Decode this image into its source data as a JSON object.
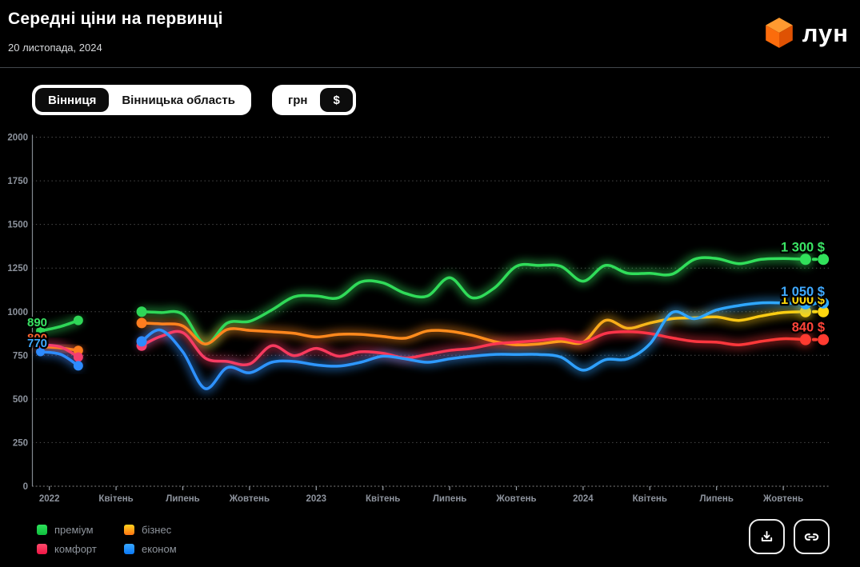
{
  "header": {
    "title": "Середні ціни на первинці",
    "date": "20 листопада, 2024",
    "logo_text": "лун",
    "logo_colors": {
      "top": "#ff9a30",
      "left": "#fb6c0c",
      "right": "#df5203"
    }
  },
  "toggles": {
    "city": [
      {
        "label": "Вінниця",
        "active": true
      },
      {
        "label": "Вінницька область",
        "active": false
      }
    ],
    "currency": [
      {
        "label": "грн",
        "active": false
      },
      {
        "label": "$",
        "active": true
      }
    ]
  },
  "chart_data": {
    "type": "line",
    "unit": "$",
    "ylim": [
      0,
      2000
    ],
    "y_ticks": [
      0,
      250,
      500,
      750,
      1000,
      1250,
      1500,
      1750,
      2000
    ],
    "x_unit": "months_since_2022_01",
    "x_ticks": [
      {
        "m": 0,
        "label": "2022"
      },
      {
        "m": 3,
        "label": "Квітень"
      },
      {
        "m": 6,
        "label": "Липень"
      },
      {
        "m": 9,
        "label": "Жовтень"
      },
      {
        "m": 12,
        "label": "2023"
      },
      {
        "m": 15,
        "label": "Квітень"
      },
      {
        "m": 18,
        "label": "Липень"
      },
      {
        "m": 21,
        "label": "Жовтень"
      },
      {
        "m": 24,
        "label": "2024"
      },
      {
        "m": 27,
        "label": "Квітень"
      },
      {
        "m": 30,
        "label": "Липень"
      },
      {
        "m": 33,
        "label": "Жовтень"
      }
    ],
    "gap_note": "no data between Feb 2022 and mid-May 2022",
    "series": [
      {
        "name": "преміум",
        "stops": [
          [
            0,
            "#2fd657"
          ],
          [
            1,
            "#31e05b"
          ]
        ],
        "label_color": "#3ae364",
        "start_label": "890",
        "end_label": "1 300 $",
        "pre": [
          [
            -0.4,
            890
          ],
          [
            0.5,
            915
          ],
          [
            1.3,
            950
          ]
        ],
        "main": [
          [
            4.15,
            1000
          ],
          [
            5,
            995
          ],
          [
            6,
            985
          ],
          [
            7,
            815
          ],
          [
            8,
            935
          ],
          [
            9,
            945
          ],
          [
            10,
            1010
          ],
          [
            11,
            1085
          ],
          [
            12,
            1090
          ],
          [
            13,
            1080
          ],
          [
            14,
            1170
          ],
          [
            15,
            1165
          ],
          [
            16,
            1105
          ],
          [
            17,
            1090
          ],
          [
            18,
            1195
          ],
          [
            19,
            1080
          ],
          [
            20,
            1135
          ],
          [
            21,
            1260
          ],
          [
            22,
            1265
          ],
          [
            23,
            1260
          ],
          [
            24,
            1175
          ],
          [
            25,
            1265
          ],
          [
            26,
            1220
          ],
          [
            27,
            1220
          ],
          [
            28,
            1215
          ],
          [
            29,
            1300
          ],
          [
            30,
            1305
          ],
          [
            31,
            1275
          ],
          [
            32,
            1300
          ],
          [
            33,
            1305
          ],
          [
            34,
            1300
          ]
        ],
        "projection": [
          34.8,
          1300
        ]
      },
      {
        "name": "бізнес",
        "stops": [
          [
            0,
            "#ff7d1f"
          ],
          [
            0.6,
            "#ff8f1c"
          ],
          [
            0.78,
            "#f5b81a"
          ],
          [
            1,
            "#ffd60f"
          ]
        ],
        "label_color": "#ffd60a",
        "start_label_color": "#ff6430",
        "start_label": "800",
        "end_label": "1 000 $",
        "pre": [
          [
            -0.4,
            800
          ],
          [
            0.5,
            792
          ],
          [
            1.3,
            778
          ]
        ],
        "main": [
          [
            4.15,
            935
          ],
          [
            5,
            930
          ],
          [
            6,
            918
          ],
          [
            7,
            815
          ],
          [
            8,
            898
          ],
          [
            9,
            893
          ],
          [
            10,
            885
          ],
          [
            11,
            876
          ],
          [
            12,
            855
          ],
          [
            13,
            870
          ],
          [
            14,
            870
          ],
          [
            15,
            858
          ],
          [
            16,
            848
          ],
          [
            17,
            890
          ],
          [
            18,
            888
          ],
          [
            19,
            865
          ],
          [
            20,
            830
          ],
          [
            21,
            810
          ],
          [
            22,
            815
          ],
          [
            23,
            830
          ],
          [
            24,
            825
          ],
          [
            25,
            950
          ],
          [
            26,
            905
          ],
          [
            27,
            935
          ],
          [
            28,
            960
          ],
          [
            29,
            965
          ],
          [
            30,
            970
          ],
          [
            31,
            950
          ],
          [
            32,
            975
          ],
          [
            33,
            995
          ],
          [
            34,
            1000
          ]
        ],
        "projection": [
          34.8,
          1000
        ]
      },
      {
        "name": "комфорт",
        "stops": [
          [
            0,
            "#f43f6f"
          ],
          [
            0.75,
            "#fb3348"
          ],
          [
            1,
            "#ff3b30"
          ]
        ],
        "label_color": "#ff4438",
        "start_label": null,
        "end_label": "840 $",
        "pre": [
          [
            -0.4,
            810
          ],
          [
            0.5,
            798
          ],
          [
            1.3,
            740
          ]
        ],
        "main": [
          [
            4.15,
            805
          ],
          [
            5,
            858
          ],
          [
            6,
            880
          ],
          [
            7,
            735
          ],
          [
            8,
            715
          ],
          [
            9,
            700
          ],
          [
            10,
            805
          ],
          [
            11,
            748
          ],
          [
            12,
            790
          ],
          [
            13,
            745
          ],
          [
            14,
            770
          ],
          [
            15,
            762
          ],
          [
            16,
            735
          ],
          [
            17,
            755
          ],
          [
            18,
            778
          ],
          [
            19,
            790
          ],
          [
            20,
            815
          ],
          [
            21,
            825
          ],
          [
            22,
            835
          ],
          [
            23,
            845
          ],
          [
            24,
            825
          ],
          [
            25,
            875
          ],
          [
            26,
            885
          ],
          [
            27,
            875
          ],
          [
            28,
            850
          ],
          [
            29,
            830
          ],
          [
            30,
            825
          ],
          [
            31,
            810
          ],
          [
            32,
            830
          ],
          [
            33,
            845
          ],
          [
            34,
            840
          ]
        ],
        "projection": [
          34.8,
          840
        ]
      },
      {
        "name": "економ",
        "stops": [
          [
            0,
            "#2e8bff"
          ],
          [
            1,
            "#2faaff"
          ]
        ],
        "label_color": "#3fa9ff",
        "start_label": "770",
        "end_label": "1 050 $",
        "pre": [
          [
            -0.4,
            770
          ],
          [
            0.5,
            756
          ],
          [
            1.3,
            690
          ]
        ],
        "main": [
          [
            4.15,
            830
          ],
          [
            5,
            895
          ],
          [
            6,
            770
          ],
          [
            7,
            560
          ],
          [
            8,
            680
          ],
          [
            9,
            650
          ],
          [
            10,
            710
          ],
          [
            11,
            715
          ],
          [
            12,
            695
          ],
          [
            13,
            688
          ],
          [
            14,
            710
          ],
          [
            15,
            745
          ],
          [
            16,
            730
          ],
          [
            17,
            710
          ],
          [
            18,
            730
          ],
          [
            19,
            745
          ],
          [
            20,
            755
          ],
          [
            21,
            755
          ],
          [
            22,
            755
          ],
          [
            23,
            740
          ],
          [
            24,
            665
          ],
          [
            25,
            725
          ],
          [
            26,
            730
          ],
          [
            27,
            815
          ],
          [
            28,
            995
          ],
          [
            29,
            960
          ],
          [
            30,
            1010
          ],
          [
            31,
            1035
          ],
          [
            32,
            1050
          ],
          [
            33,
            1050
          ],
          [
            34,
            1045
          ]
        ],
        "projection": [
          34.8,
          1050
        ]
      }
    ],
    "legend": [
      {
        "label": "преміум",
        "c1": "#2ee25b",
        "c2": "#0fbe3d"
      },
      {
        "label": "бізнес",
        "c1": "#ffd21e",
        "c2": "#ff7413"
      },
      {
        "label": "комфорт",
        "c1": "#ff4a6b",
        "c2": "#ef1545"
      },
      {
        "label": "економ",
        "c1": "#39a8ff",
        "c2": "#0b79f7"
      }
    ]
  },
  "footer": {
    "download_icon": "download-icon",
    "link_icon": "link-icon"
  }
}
